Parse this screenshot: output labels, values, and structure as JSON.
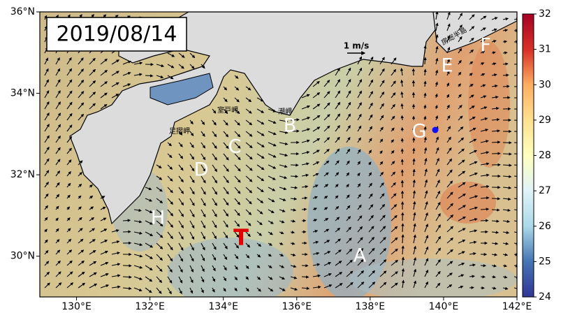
{
  "map": {
    "title": "2019/08/14",
    "lonlim": [
      129,
      142
    ],
    "latlim": [
      29,
      36
    ],
    "lon_ticks": [
      {
        "value": 130,
        "label": "130°E"
      },
      {
        "value": 132,
        "label": "132°E"
      },
      {
        "value": 134,
        "label": "134°E"
      },
      {
        "value": 136,
        "label": "136°E"
      },
      {
        "value": 138,
        "label": "138°E"
      },
      {
        "value": 140,
        "label": "140°E"
      },
      {
        "value": 142,
        "label": "142°E"
      }
    ],
    "lat_ticks": [
      {
        "value": 30,
        "label": "30°N"
      },
      {
        "value": 32,
        "label": "32°N"
      },
      {
        "value": 34,
        "label": "34°N"
      },
      {
        "value": 36,
        "label": "36°N"
      }
    ],
    "colorbar": {
      "lim": [
        24,
        32
      ],
      "ticks": [
        24,
        25,
        26,
        27,
        28,
        29,
        30,
        31,
        32
      ]
    },
    "scale_label": "1 m/s",
    "markers": [
      "A",
      "B",
      "C",
      "D",
      "E",
      "F",
      "G",
      "H"
    ],
    "storm": "T",
    "places": [
      "室戸岬",
      "潮岬",
      "足摺岬",
      "房総半島"
    ]
  }
}
